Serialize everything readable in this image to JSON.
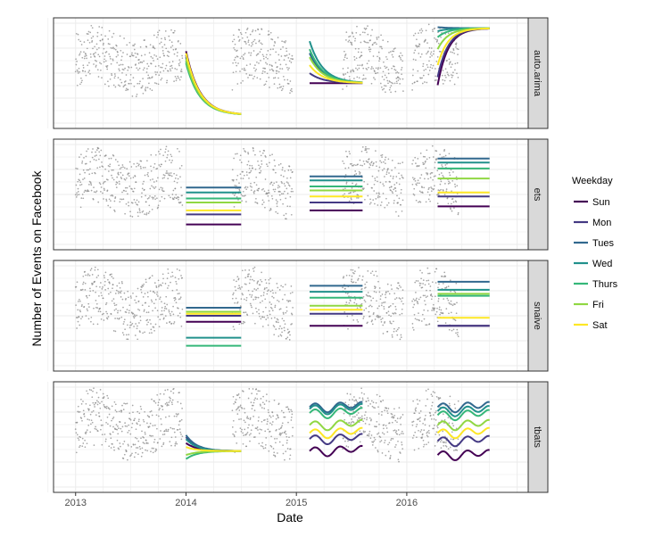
{
  "chart_data": {
    "type": "line",
    "title": "",
    "xlabel": "Date",
    "ylabel": "Number of Events on Facebook",
    "x_ticks": [
      "2013",
      "2014",
      "2015",
      "2016"
    ],
    "x_tick_values": [
      2013,
      2014,
      2015,
      2016
    ],
    "xlim": [
      2012.8,
      2017.1
    ],
    "ylim": [
      0,
      100
    ],
    "grid": true,
    "facet_strip": "right",
    "legend": {
      "title": "Weekday",
      "position": "right",
      "entries": [
        {
          "name": "Sun",
          "color": "#440154"
        },
        {
          "name": "Mon",
          "color": "#443983"
        },
        {
          "name": "Tues",
          "color": "#31688e"
        },
        {
          "name": "Wed",
          "color": "#21918c"
        },
        {
          "name": "Thurs",
          "color": "#35b779"
        },
        {
          "name": "Fri",
          "color": "#90d743"
        },
        {
          "name": "Sat",
          "color": "#fde725"
        }
      ]
    },
    "observed_data": {
      "color": "#888888",
      "note_segments": [
        [
          2013.0,
          2013.97
        ],
        [
          2014.42,
          2014.97
        ],
        [
          2015.42,
          2015.97
        ],
        [
          2016.05,
          2016.47
        ]
      ]
    },
    "forecast_windows": [
      [
        2014.0,
        2014.5
      ],
      [
        2015.12,
        2015.6
      ],
      [
        2016.28,
        2016.75
      ]
    ],
    "panels": [
      {
        "label": "auto.arima",
        "forecasts": [
          {
            "window": 0,
            "shape": "decay",
            "start": {
              "Sun": 72,
              "Mon": 68,
              "Tues": 66,
              "Wed": 62,
              "Thurs": 60,
              "Fri": 64,
              "Sat": 70
            },
            "end": 8
          },
          {
            "window": 1,
            "shape": "decay",
            "start": {
              "Sun": 40,
              "Mon": 50,
              "Tues": 70,
              "Wed": 82,
              "Thurs": 74,
              "Fri": 66,
              "Sat": 58
            },
            "end": 40
          },
          {
            "window": 2,
            "shape": "growth",
            "start": {
              "Sun": 38,
              "Mon": 46,
              "Tues": 96,
              "Wed": 92,
              "Thurs": 86,
              "Fri": 74,
              "Sat": 58
            },
            "end": 95
          }
        ]
      },
      {
        "label": "ets",
        "forecasts": [
          {
            "window": 0,
            "shape": "flat",
            "level": {
              "Sun": 20,
              "Mon": 30,
              "Tues": 57,
              "Wed": 52,
              "Thurs": 46,
              "Fri": 42,
              "Sat": 34
            }
          },
          {
            "window": 1,
            "shape": "flat",
            "level": {
              "Sun": 34,
              "Mon": 42,
              "Tues": 68,
              "Wed": 64,
              "Thurs": 58,
              "Fri": 54,
              "Sat": 48
            }
          },
          {
            "window": 2,
            "shape": "flat",
            "level": {
              "Sun": 38,
              "Mon": 48,
              "Tues": 86,
              "Wed": 82,
              "Thurs": 76,
              "Fri": 66,
              "Sat": 52
            }
          }
        ]
      },
      {
        "label": "snaive",
        "forecasts": [
          {
            "window": 0,
            "shape": "flat",
            "level": {
              "Sun": 44,
              "Mon": 50,
              "Tues": 58,
              "Wed": 28,
              "Thurs": 20,
              "Fri": 54,
              "Sat": 52
            }
          },
          {
            "window": 1,
            "shape": "flat",
            "level": {
              "Sun": 40,
              "Mon": 52,
              "Tues": 80,
              "Wed": 74,
              "Thurs": 68,
              "Fri": 60,
              "Sat": 56
            }
          },
          {
            "window": 2,
            "shape": "flat",
            "level": {
              "Sun": 40,
              "Mon": 40,
              "Tues": 84,
              "Wed": 76,
              "Thurs": 70,
              "Fri": 72,
              "Sat": 48
            }
          }
        ]
      },
      {
        "label": "tbats",
        "forecasts": [
          {
            "window": 0,
            "shape": "converge",
            "start": {
              "Sun": 44,
              "Mon": 50,
              "Tues": 52,
              "Wed": 48,
              "Thurs": 28,
              "Fri": 32,
              "Sat": 40
            },
            "end": 36
          },
          {
            "window": 1,
            "shape": "wave",
            "level": {
              "Sun": 36,
              "Mon": 48,
              "Tues": 80,
              "Wed": 78,
              "Thurs": 74,
              "Fri": 62,
              "Sat": 54
            }
          },
          {
            "window": 2,
            "shape": "wave",
            "level": {
              "Sun": 32,
              "Mon": 46,
              "Tues": 80,
              "Wed": 76,
              "Thurs": 72,
              "Fri": 62,
              "Sat": 54
            }
          }
        ]
      }
    ]
  }
}
